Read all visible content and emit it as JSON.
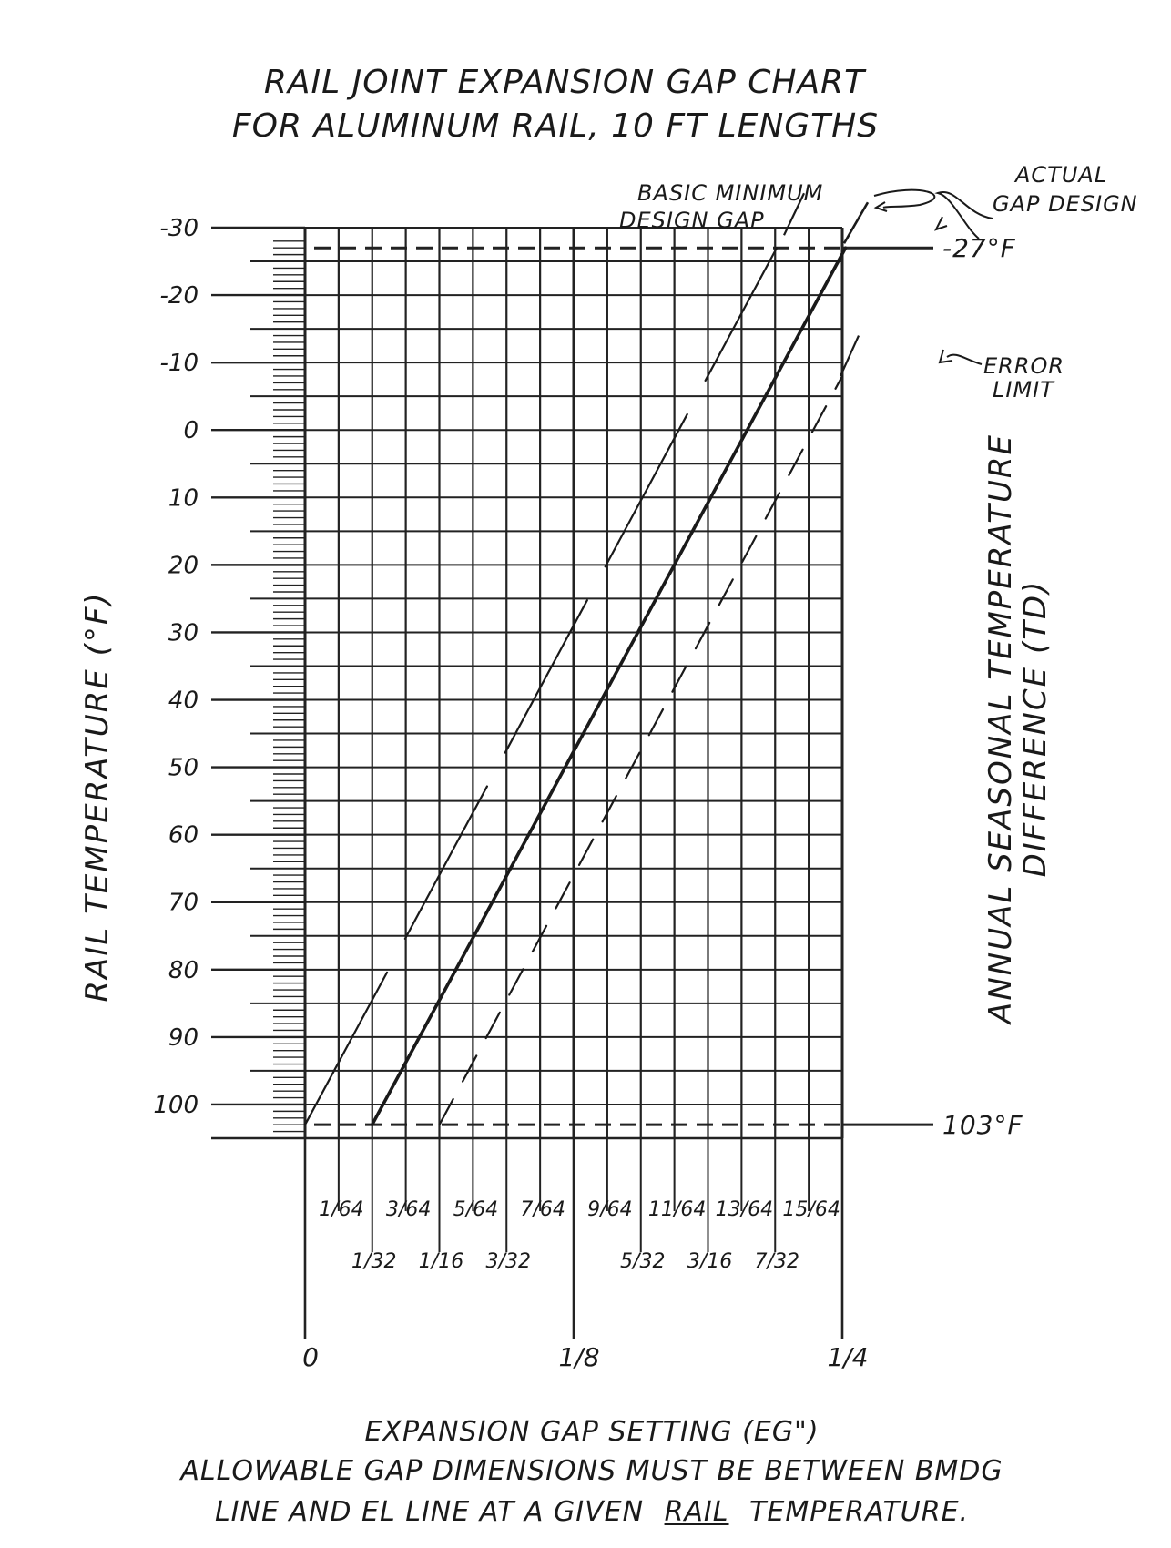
{
  "chart_data": {
    "type": "line",
    "title": "RAIL JOINT EXPANSION GAP CHART",
    "subtitle": "FOR ALUMINUM RAIL, 10 FT LENGTHS",
    "xlabel": "EXPANSION GAP SETTING (EG\")",
    "ylabel": "RAIL TEMPERATURE (°F)",
    "right_label_line1": "ANNUAL SEASONAL TEMPERATURE",
    "right_label_line2": "DIFFERENCE (TD)",
    "note_line1": "ALLOWABLE GAP DIMENSIONS MUST BE BETWEEN BMDG",
    "note_line2": "LINE AND EL LINE AT A GIVEN",
    "note_underlined": "RAIL",
    "note_line2_end": "TEMPERATURE.",
    "xlim": [
      0,
      0.25
    ],
    "ylim": [
      -30,
      105
    ],
    "y_inverted": true,
    "grid": true,
    "y_ticks": [
      {
        "value": -30,
        "label": "-30"
      },
      {
        "value": -20,
        "label": "-20"
      },
      {
        "value": -10,
        "label": "-10"
      },
      {
        "value": 0,
        "label": "0"
      },
      {
        "value": 10,
        "label": "10"
      },
      {
        "value": 20,
        "label": "20"
      },
      {
        "value": 30,
        "label": "30"
      },
      {
        "value": 40,
        "label": "40"
      },
      {
        "value": 50,
        "label": "50"
      },
      {
        "value": 60,
        "label": "60"
      },
      {
        "value": 70,
        "label": "70"
      },
      {
        "value": 80,
        "label": "80"
      },
      {
        "value": 90,
        "label": "90"
      },
      {
        "value": 100,
        "label": "100"
      }
    ],
    "x_ticks_odd64": [
      {
        "value": 0.015625,
        "label": "1/64"
      },
      {
        "value": 0.046875,
        "label": "3/64"
      },
      {
        "value": 0.078125,
        "label": "5/64"
      },
      {
        "value": 0.109375,
        "label": "7/64"
      },
      {
        "value": 0.140625,
        "label": "9/64"
      },
      {
        "value": 0.171875,
        "label": "11/64"
      },
      {
        "value": 0.203125,
        "label": "13/64"
      },
      {
        "value": 0.234375,
        "label": "15/64"
      }
    ],
    "x_ticks_odd32": [
      {
        "value": 0.03125,
        "label": "1/32"
      },
      {
        "value": 0.0625,
        "label": "1/16"
      },
      {
        "value": 0.09375,
        "label": "3/32"
      },
      {
        "value": 0.15625,
        "label": "5/32"
      },
      {
        "value": 0.1875,
        "label": "3/16"
      },
      {
        "value": 0.21875,
        "label": "7/32"
      }
    ],
    "x_ticks_major": [
      {
        "value": 0,
        "label": "0"
      },
      {
        "value": 0.125,
        "label": "1/8"
      },
      {
        "value": 0.25,
        "label": "1/4"
      }
    ],
    "reference_lines": [
      {
        "y": -27,
        "label": "-27°F"
      },
      {
        "y": 103,
        "label": "103°F"
      }
    ],
    "series": [
      {
        "name": "BASIC MINIMUM DESIGN GAP",
        "style": "long-dash",
        "points": [
          [
            0.0,
            103
          ],
          [
            0.2195,
            -27
          ]
        ]
      },
      {
        "name": "ACTUAL GAP DESIGN",
        "style": "solid",
        "points": [
          [
            0.0312,
            103
          ],
          [
            0.2515,
            -27
          ]
        ]
      },
      {
        "name": "ERROR LIMIT",
        "style": "short-dash",
        "points": [
          [
            0.0625,
            103
          ],
          [
            0.25,
            -8
          ]
        ]
      }
    ],
    "annotations": {
      "bmdg_line1": "BASIC MINIMUM",
      "bmdg_line2": "DESIGN GAP",
      "actual_line1": "ACTUAL",
      "actual_line2": "GAP DESIGN",
      "error_line1": "ERROR",
      "error_line2": "LIMIT"
    }
  }
}
